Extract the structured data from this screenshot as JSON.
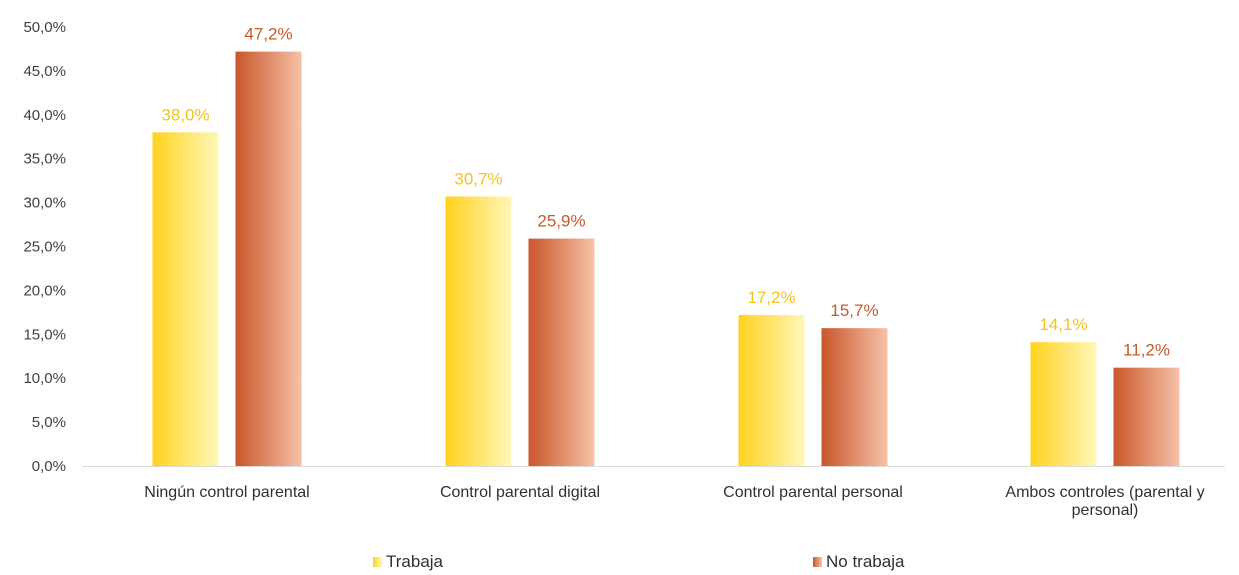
{
  "chart_data": {
    "type": "bar",
    "title": "",
    "xlabel": "",
    "ylabel": "",
    "ylim": [
      0,
      50
    ],
    "y_ticks": [
      "0,0%",
      "5,0%",
      "10,0%",
      "15,0%",
      "20,0%",
      "25,0%",
      "30,0%",
      "35,0%",
      "40,0%",
      "45,0%",
      "50,0%"
    ],
    "categories": [
      [
        "Ningún control parental"
      ],
      [
        "Control parental digital"
      ],
      [
        "Control parental personal"
      ],
      [
        "Ambos controles (parental y",
        "personal)"
      ]
    ],
    "series": [
      {
        "name": "Trabaja",
        "values": [
          38.0,
          30.7,
          17.2,
          14.1
        ],
        "labels": [
          "38,0%",
          "30,7%",
          "17,2%",
          "14,1%"
        ],
        "color_dark": "#FFD21E",
        "color_light": "#FFF7B8",
        "label_color": "#F2C418"
      },
      {
        "name": "No trabaja",
        "values": [
          47.2,
          25.9,
          15.7,
          11.2
        ],
        "labels": [
          "47,2%",
          "25,9%",
          "15,7%",
          "11,2%"
        ],
        "color_dark": "#C9562A",
        "color_light": "#F6C2A8",
        "label_color": "#C55A2A"
      }
    ],
    "grid": false,
    "legend_position": "bottom"
  }
}
